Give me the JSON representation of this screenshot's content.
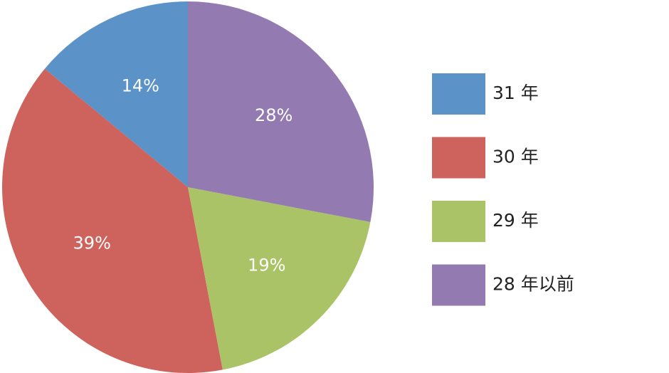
{
  "chart_data": {
    "type": "pie",
    "categories": [
      "31 年",
      "30 年",
      "29 年",
      "28 年以前"
    ],
    "values": [
      14,
      39,
      19,
      28
    ],
    "value_labels": [
      "14%",
      "39%",
      "19%",
      "28%"
    ],
    "colors": [
      "#5b93c9",
      "#cd635c",
      "#a9c366",
      "#937bb2"
    ],
    "legend": "right"
  }
}
